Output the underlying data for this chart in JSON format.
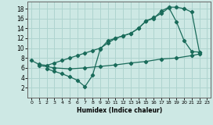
{
  "xlabel": "Humidex (Indice chaleur)",
  "ylabel": "",
  "bg_color": "#cde8e4",
  "grid_color": "#afd4cf",
  "line_color": "#1a6b5a",
  "xlim": [
    -0.5,
    23.5
  ],
  "ylim": [
    0,
    19.5
  ],
  "xticks": [
    0,
    1,
    2,
    3,
    4,
    5,
    6,
    7,
    8,
    9,
    10,
    11,
    12,
    13,
    14,
    15,
    16,
    17,
    18,
    19,
    20,
    21,
    22,
    23
  ],
  "yticks": [
    2,
    4,
    6,
    8,
    10,
    12,
    14,
    16,
    18
  ],
  "line1_x": [
    0,
    1,
    2,
    3,
    4,
    5,
    6,
    7,
    8,
    9,
    10,
    11,
    12,
    13,
    14,
    15,
    16,
    17,
    18,
    19,
    20,
    21,
    22
  ],
  "line1_y": [
    7.5,
    6.7,
    6.5,
    7.0,
    7.5,
    8.0,
    8.5,
    9.0,
    9.5,
    10.0,
    11.0,
    12.0,
    12.5,
    13.0,
    14.0,
    15.5,
    16.0,
    17.5,
    18.3,
    18.3,
    18.0,
    17.3,
    9.2
  ],
  "line2_x": [
    1,
    3,
    5,
    7,
    9,
    11,
    13,
    15,
    17,
    19,
    21,
    22
  ],
  "line2_y": [
    6.5,
    6.0,
    5.8,
    6.0,
    6.3,
    6.6,
    7.0,
    7.3,
    7.8,
    8.0,
    8.5,
    8.8
  ],
  "line3_x": [
    2,
    3,
    4,
    5,
    6,
    7,
    8,
    9,
    10,
    11,
    12,
    13,
    14,
    15,
    16,
    17,
    18,
    19,
    20,
    21,
    22
  ],
  "line3_y": [
    5.8,
    5.3,
    4.8,
    4.2,
    3.5,
    2.2,
    4.5,
    9.8,
    11.5,
    12.0,
    12.5,
    13.0,
    14.0,
    15.5,
    16.2,
    17.0,
    18.2,
    15.3,
    11.5,
    9.3,
    9.2
  ]
}
